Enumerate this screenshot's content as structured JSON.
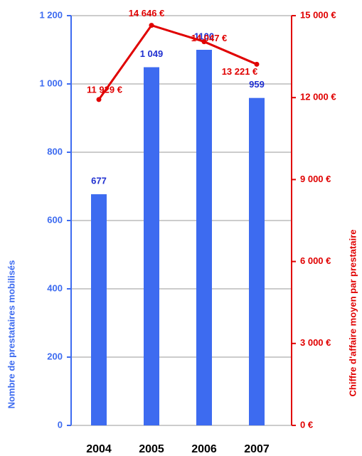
{
  "chart_data": {
    "type": "bar",
    "categories": [
      "2004",
      "2005",
      "2006",
      "2007"
    ],
    "series": [
      {
        "name": "Nombre de prestataires mobilisés",
        "type": "bar",
        "axis": "y",
        "color": "#3d6bf0",
        "values": [
          677,
          1049,
          1100,
          959
        ],
        "value_labels": [
          "677",
          "1 049",
          "1100",
          "959"
        ]
      },
      {
        "name": "Chiffre d'affaire moyen par prestataire",
        "type": "line",
        "axis": "y2",
        "color": "#e00000",
        "values": [
          11929,
          14646,
          14047,
          13221
        ],
        "value_labels": [
          "11 929 €",
          "14 646 €",
          "14 047 €",
          "13 221 €"
        ]
      }
    ],
    "ylabel": "Nombre de prestataires mobilisés",
    "y2label": "Chiffre d'affaire moyen par prestataire",
    "ylim": [
      0,
      1200
    ],
    "yticks": [
      0,
      200,
      400,
      600,
      800,
      {
        "value": 1000,
        "label": "1 000"
      },
      {
        "value": 1200,
        "label": "1 200"
      }
    ],
    "y2lim": [
      0,
      15000
    ],
    "y2ticks": [
      {
        "value": 0,
        "label": "0 €"
      },
      {
        "value": 3000,
        "label": "3 000 €"
      },
      {
        "value": 6000,
        "label": "6 000 €"
      },
      {
        "value": 9000,
        "label": "9 000 €"
      },
      {
        "value": 12000,
        "label": "12 000 €"
      },
      {
        "value": 15000,
        "label": "15 000 €"
      }
    ],
    "grid": true
  }
}
